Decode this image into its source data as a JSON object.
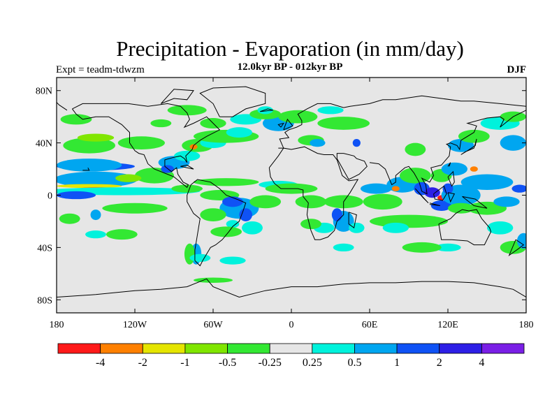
{
  "title": "Precipitation - Evaporation (in mm/day)",
  "subtitle": "12.0kyr BP - 012kyr BP",
  "left_label": "Expt = teadm-tdwzm",
  "right_label": "DJF",
  "lat_ticks": [
    "80N",
    "40N",
    "0",
    "40S",
    "80S"
  ],
  "lon_ticks": [
    "180",
    "120W",
    "60W",
    "0",
    "60E",
    "120E",
    "180"
  ],
  "colorbar": {
    "colors": [
      "#ff1a1a",
      "#ff8000",
      "#e5e500",
      "#80e600",
      "#33e833",
      "#e6e6e6",
      "#00f2dc",
      "#00a6f0",
      "#0f52f5",
      "#2d1fe6",
      "#7a1fe6"
    ],
    "labels": [
      "-4",
      "-2",
      "-1",
      "-0.5",
      "-0.25",
      "0.25",
      "0.5",
      "1",
      "2",
      "4"
    ]
  },
  "map": {
    "background": "#e6e6e6",
    "features": [
      {
        "c": 8,
        "lon": -150,
        "lat": 22,
        "rx": 30,
        "ry": 3
      },
      {
        "c": 7,
        "lon": -155,
        "lat": 23,
        "rx": 25,
        "ry": 5
      },
      {
        "c": 7,
        "lon": -150,
        "lat": 12,
        "rx": 32,
        "ry": 6
      },
      {
        "c": 2,
        "lon": -155,
        "lat": 7,
        "rx": 25,
        "ry": 1.5
      },
      {
        "c": 1,
        "lon": -150,
        "lat": 5,
        "rx": 12,
        "ry": 1.2
      },
      {
        "c": 6,
        "lon": -130,
        "lat": 3,
        "rx": 60,
        "ry": 3
      },
      {
        "c": 8,
        "lon": -165,
        "lat": 0,
        "rx": 15,
        "ry": 3
      },
      {
        "c": 4,
        "lon": -155,
        "lat": 38,
        "rx": 20,
        "ry": 6
      },
      {
        "c": 3,
        "lon": -150,
        "lat": 44,
        "rx": 14,
        "ry": 3
      },
      {
        "c": 4,
        "lon": -115,
        "lat": 40,
        "rx": 18,
        "ry": 5
      },
      {
        "c": 4,
        "lon": -165,
        "lat": 58,
        "rx": 12,
        "ry": 4
      },
      {
        "c": 4,
        "lon": -105,
        "lat": 15,
        "rx": 15,
        "ry": 6
      },
      {
        "c": 3,
        "lon": -125,
        "lat": 13,
        "rx": 10,
        "ry": 3
      },
      {
        "c": 4,
        "lon": -120,
        "lat": -10,
        "rx": 25,
        "ry": 4
      },
      {
        "c": 7,
        "lon": -150,
        "lat": -15,
        "rx": 4,
        "ry": 4
      },
      {
        "c": 4,
        "lon": -170,
        "lat": -18,
        "rx": 8,
        "ry": 4
      },
      {
        "c": 6,
        "lon": -150,
        "lat": -30,
        "rx": 8,
        "ry": 3
      },
      {
        "c": 4,
        "lon": -130,
        "lat": -30,
        "rx": 12,
        "ry": 4
      },
      {
        "c": 7,
        "lon": -90,
        "lat": 25,
        "rx": 12,
        "ry": 5
      },
      {
        "c": 8,
        "lon": -95,
        "lat": 20,
        "rx": 5,
        "ry": 3
      },
      {
        "c": 6,
        "lon": -80,
        "lat": 30,
        "rx": 10,
        "ry": 4
      },
      {
        "c": 4,
        "lon": -72,
        "lat": 38,
        "rx": 12,
        "ry": 5
      },
      {
        "c": 1,
        "lon": -75,
        "lat": 37,
        "rx": 3,
        "ry": 2
      },
      {
        "c": 6,
        "lon": -60,
        "lat": 40,
        "rx": 10,
        "ry": 4
      },
      {
        "c": 4,
        "lon": -50,
        "lat": 45,
        "rx": 25,
        "ry": 5
      },
      {
        "c": 6,
        "lon": -40,
        "lat": 48,
        "rx": 10,
        "ry": 4
      },
      {
        "c": 6,
        "lon": -35,
        "lat": 58,
        "rx": 12,
        "ry": 4
      },
      {
        "c": 4,
        "lon": -60,
        "lat": 55,
        "rx": 10,
        "ry": 4
      },
      {
        "c": 4,
        "lon": -80,
        "lat": 65,
        "rx": 15,
        "ry": 4
      },
      {
        "c": 4,
        "lon": -100,
        "lat": 55,
        "rx": 8,
        "ry": 3
      },
      {
        "c": 7,
        "lon": -10,
        "lat": 55,
        "rx": 12,
        "ry": 6
      },
      {
        "c": 4,
        "lon": 5,
        "lat": 60,
        "rx": 15,
        "ry": 5
      },
      {
        "c": 4,
        "lon": -20,
        "lat": 62,
        "rx": 12,
        "ry": 4
      },
      {
        "c": 6,
        "lon": -20,
        "lat": 65,
        "rx": 6,
        "ry": 3
      },
      {
        "c": 4,
        "lon": 40,
        "lat": 55,
        "rx": 20,
        "ry": 5
      },
      {
        "c": 6,
        "lon": 30,
        "lat": 65,
        "rx": 10,
        "ry": 3
      },
      {
        "c": 8,
        "lon": 50,
        "lat": 40,
        "rx": 3,
        "ry": 3
      },
      {
        "c": 4,
        "lon": 15,
        "lat": 42,
        "rx": 10,
        "ry": 4
      },
      {
        "c": 7,
        "lon": 20,
        "lat": 40,
        "rx": 6,
        "ry": 3
      },
      {
        "c": 4,
        "lon": -50,
        "lat": 10,
        "rx": 25,
        "ry": 3
      },
      {
        "c": 4,
        "lon": -55,
        "lat": 0,
        "rx": 15,
        "ry": 4
      },
      {
        "c": 7,
        "lon": -40,
        "lat": -10,
        "rx": 15,
        "ry": 8
      },
      {
        "c": 8,
        "lon": -45,
        "lat": -5,
        "rx": 8,
        "ry": 4
      },
      {
        "c": 8,
        "lon": -35,
        "lat": -15,
        "rx": 5,
        "ry": 5
      },
      {
        "c": 6,
        "lon": -30,
        "lat": -25,
        "rx": 8,
        "ry": 5
      },
      {
        "c": 4,
        "lon": -60,
        "lat": -15,
        "rx": 10,
        "ry": 5
      },
      {
        "c": 4,
        "lon": -20,
        "lat": -5,
        "rx": 12,
        "ry": 5
      },
      {
        "c": 6,
        "lon": -45,
        "lat": -22,
        "rx": 5,
        "ry": 3
      },
      {
        "c": 4,
        "lon": -50,
        "lat": -28,
        "rx": 12,
        "ry": 4
      },
      {
        "c": 7,
        "lon": -73,
        "lat": -45,
        "rx": 4,
        "ry": 8
      },
      {
        "c": 4,
        "lon": -78,
        "lat": -45,
        "rx": 4,
        "ry": 8
      },
      {
        "c": 6,
        "lon": -45,
        "lat": -50,
        "rx": 10,
        "ry": 3
      },
      {
        "c": 4,
        "lon": -60,
        "lat": -65,
        "rx": 15,
        "ry": 2
      },
      {
        "c": 4,
        "lon": -80,
        "lat": 5,
        "rx": 12,
        "ry": 3
      },
      {
        "c": 6,
        "lon": -10,
        "lat": 8,
        "rx": 15,
        "ry": 3
      },
      {
        "c": 4,
        "lon": 0,
        "lat": 5,
        "rx": 20,
        "ry": 4
      },
      {
        "c": 4,
        "lon": 15,
        "lat": -5,
        "rx": 12,
        "ry": 5
      },
      {
        "c": 7,
        "lon": 40,
        "lat": -20,
        "rx": 8,
        "ry": 8
      },
      {
        "c": 8,
        "lon": 35,
        "lat": -15,
        "rx": 4,
        "ry": 5
      },
      {
        "c": 6,
        "lon": 50,
        "lat": -25,
        "rx": 6,
        "ry": 4
      },
      {
        "c": 4,
        "lon": 40,
        "lat": -5,
        "rx": 15,
        "ry": 5
      },
      {
        "c": 6,
        "lon": 25,
        "lat": -25,
        "rx": 8,
        "ry": 4
      },
      {
        "c": 4,
        "lon": 15,
        "lat": -22,
        "rx": 8,
        "ry": 4
      },
      {
        "c": 6,
        "lon": 40,
        "lat": -40,
        "rx": 8,
        "ry": 3
      },
      {
        "c": 4,
        "lon": 90,
        "lat": -20,
        "rx": 30,
        "ry": 5
      },
      {
        "c": 6,
        "lon": 80,
        "lat": -25,
        "rx": 10,
        "ry": 4
      },
      {
        "c": 4,
        "lon": 70,
        "lat": -5,
        "rx": 15,
        "ry": 6
      },
      {
        "c": 7,
        "lon": 65,
        "lat": 5,
        "rx": 12,
        "ry": 4
      },
      {
        "c": 7,
        "lon": 85,
        "lat": 8,
        "rx": 12,
        "ry": 6
      },
      {
        "c": 1,
        "lon": 80,
        "lat": 5,
        "rx": 3,
        "ry": 2
      },
      {
        "c": 4,
        "lon": 95,
        "lat": 15,
        "rx": 12,
        "ry": 6
      },
      {
        "c": 8,
        "lon": 100,
        "lat": 5,
        "rx": 6,
        "ry": 5
      },
      {
        "c": 9,
        "lon": 108,
        "lat": 2,
        "rx": 6,
        "ry": 4
      },
      {
        "c": 0,
        "lon": 115,
        "lat": -2,
        "rx": 3,
        "ry": 2
      },
      {
        "c": 8,
        "lon": 115,
        "lat": -8,
        "rx": 8,
        "ry": 4
      },
      {
        "c": 7,
        "lon": 130,
        "lat": 0,
        "rx": 15,
        "ry": 8
      },
      {
        "c": 7,
        "lon": 150,
        "lat": 10,
        "rx": 20,
        "ry": 6
      },
      {
        "c": 4,
        "lon": 150,
        "lat": -10,
        "rx": 15,
        "ry": 5
      },
      {
        "c": 7,
        "lon": 165,
        "lat": -5,
        "rx": 10,
        "ry": 4
      },
      {
        "c": 8,
        "lon": 175,
        "lat": 5,
        "rx": 6,
        "ry": 3
      },
      {
        "c": 6,
        "lon": 160,
        "lat": -25,
        "rx": 10,
        "ry": 5
      },
      {
        "c": 4,
        "lon": 170,
        "lat": -40,
        "rx": 10,
        "ry": 5
      },
      {
        "c": 7,
        "lon": 178,
        "lat": -35,
        "rx": 5,
        "ry": 6
      },
      {
        "c": 4,
        "lon": 115,
        "lat": 15,
        "rx": 8,
        "ry": 5
      },
      {
        "c": 7,
        "lon": 125,
        "lat": 20,
        "rx": 10,
        "ry": 5
      },
      {
        "c": 7,
        "lon": 130,
        "lat": 38,
        "rx": 10,
        "ry": 5
      },
      {
        "c": 4,
        "lon": 140,
        "lat": 45,
        "rx": 12,
        "ry": 5
      },
      {
        "c": 6,
        "lon": 160,
        "lat": 55,
        "rx": 15,
        "ry": 5
      },
      {
        "c": 7,
        "lon": 170,
        "lat": 40,
        "rx": 10,
        "ry": 6
      },
      {
        "c": 4,
        "lon": 170,
        "lat": 60,
        "rx": 10,
        "ry": 4
      },
      {
        "c": 4,
        "lon": 95,
        "lat": 35,
        "rx": 8,
        "ry": 5
      },
      {
        "c": 4,
        "lon": 130,
        "lat": -10,
        "rx": 10,
        "ry": 4
      },
      {
        "c": 8,
        "lon": 120,
        "lat": 5,
        "rx": 4,
        "ry": 4
      },
      {
        "c": 1,
        "lon": 140,
        "lat": 20,
        "rx": 3,
        "ry": 2
      },
      {
        "c": 6,
        "lon": 120,
        "lat": -40,
        "rx": 10,
        "ry": 3
      },
      {
        "c": 4,
        "lon": 100,
        "lat": -40,
        "rx": 15,
        "ry": 4
      },
      {
        "c": 6,
        "lon": -70,
        "lat": -48,
        "rx": 8,
        "ry": 3
      }
    ]
  }
}
